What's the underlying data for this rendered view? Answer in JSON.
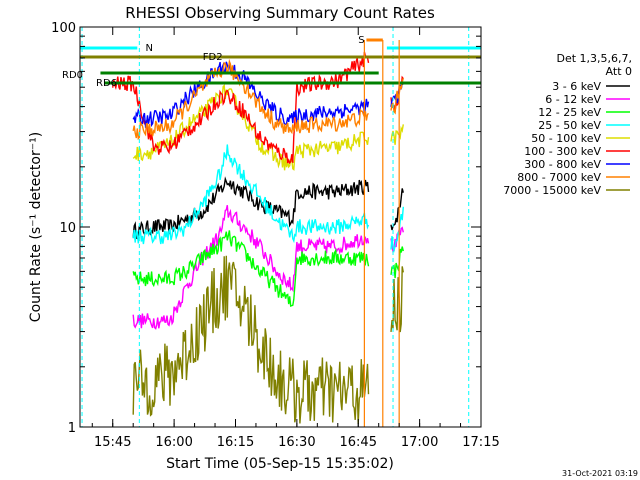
{
  "chart_data": {
    "type": "line",
    "title": "RHESSI Observing Summary Count Rates",
    "xlabel": "Start Time (05-Sep-15 15:35:02)",
    "ylabel": "Count Rate (s⁻¹ detector⁻¹)",
    "yscale": "log",
    "ylim": [
      1,
      100
    ],
    "xlim": [
      "15:37:00",
      "17:15:00"
    ],
    "x_ticks": [
      "15:45",
      "16:00",
      "16:15",
      "16:30",
      "16:45",
      "17:00",
      "17:15"
    ],
    "y_ticks": [
      "1",
      "10",
      "100"
    ],
    "legend_placement": "right",
    "legend_header": [
      "Det 1,3,5,6,7,",
      "Att 0"
    ],
    "timestamp": "31-Oct-2021 03:19",
    "annotations": {
      "N": "N",
      "S": "S",
      "FD2": "FD2",
      "RD0": "RD0",
      "RD6": "RD6"
    },
    "colors": {
      "band_3_6": "#000000",
      "band_6_12": "#ff00ff",
      "band_12_25": "#00ff00",
      "band_25_50": "#00ffff",
      "band_50_100": "#dddd00",
      "band_100_300": "#ff0000",
      "band_300_800": "#0000ff",
      "band_800_7000": "#ff8000",
      "band_7000_15000": "#808000",
      "night_marker": "#00ffff",
      "saa_marker": "#ff8000",
      "flare_marker": "#808000",
      "decimation_marker": "#008000"
    },
    "data_gaps": [
      [
        "16:47:30",
        "16:53:00"
      ]
    ],
    "series": [
      {
        "name": "3 - 6 keV",
        "color": "#000000",
        "points": [
          [
            "15:50",
            9.5
          ],
          [
            "15:55",
            10
          ],
          [
            "15:59",
            10
          ],
          [
            "16:03",
            11
          ],
          [
            "16:07",
            12
          ],
          [
            "16:11",
            15
          ],
          [
            "16:13",
            17
          ],
          [
            "16:17",
            15
          ],
          [
            "16:21",
            13
          ],
          [
            "16:25",
            12
          ],
          [
            "16:29",
            11
          ],
          [
            "16:30",
            15
          ],
          [
            "16:40",
            15
          ],
          [
            "16:47",
            16
          ],
          [
            "16:54",
            10
          ],
          [
            "16:56",
            16
          ]
        ]
      },
      {
        "name": "6 - 12 keV",
        "color": "#ff00ff",
        "points": [
          [
            "15:50",
            3.4
          ],
          [
            "15:55",
            3.4
          ],
          [
            "15:59",
            3.4
          ],
          [
            "16:03",
            5
          ],
          [
            "16:07",
            7
          ],
          [
            "16:11",
            9
          ],
          [
            "16:13",
            12
          ],
          [
            "16:17",
            10
          ],
          [
            "16:21",
            8
          ],
          [
            "16:25",
            6
          ],
          [
            "16:29",
            5
          ],
          [
            "16:30",
            8
          ],
          [
            "16:40",
            8
          ],
          [
            "16:47",
            9
          ],
          [
            "16:54",
            8
          ],
          [
            "16:56",
            10
          ]
        ]
      },
      {
        "name": "12 - 25 keV",
        "color": "#00ff00",
        "points": [
          [
            "15:50",
            5.5
          ],
          [
            "15:55",
            5.5
          ],
          [
            "15:59",
            5.5
          ],
          [
            "16:03",
            6
          ],
          [
            "16:07",
            7
          ],
          [
            "16:11",
            8
          ],
          [
            "16:13",
            9
          ],
          [
            "16:17",
            7.5
          ],
          [
            "16:21",
            6
          ],
          [
            "16:25",
            5
          ],
          [
            "16:29",
            4
          ],
          [
            "16:30",
            7
          ],
          [
            "16:40",
            7
          ],
          [
            "16:47",
            7
          ],
          [
            "16:54",
            6
          ],
          [
            "16:56",
            8
          ]
        ]
      },
      {
        "name": "25 - 50 keV",
        "color": "#00ffff",
        "points": [
          [
            "15:50",
            9
          ],
          [
            "15:55",
            9
          ],
          [
            "15:59",
            9
          ],
          [
            "16:03",
            10
          ],
          [
            "16:07",
            13
          ],
          [
            "16:11",
            18
          ],
          [
            "16:13",
            24
          ],
          [
            "16:17",
            18
          ],
          [
            "16:21",
            14
          ],
          [
            "16:25",
            11
          ],
          [
            "16:29",
            9
          ],
          [
            "16:30",
            10
          ],
          [
            "16:40",
            10
          ],
          [
            "16:47",
            11
          ],
          [
            "16:54",
            8
          ],
          [
            "16:56",
            12
          ]
        ]
      },
      {
        "name": "50 - 100 keV",
        "color": "#dddd00",
        "points": [
          [
            "15:50",
            23
          ],
          [
            "15:55",
            24
          ],
          [
            "15:59",
            26
          ],
          [
            "16:03",
            32
          ],
          [
            "16:07",
            37
          ],
          [
            "16:11",
            45
          ],
          [
            "16:13",
            48
          ],
          [
            "16:17",
            36
          ],
          [
            "16:21",
            26
          ],
          [
            "16:25",
            22
          ],
          [
            "16:29",
            20
          ],
          [
            "16:30",
            24
          ],
          [
            "16:40",
            25
          ],
          [
            "16:47",
            28
          ],
          [
            "16:54",
            28
          ],
          [
            "16:56",
            30
          ]
        ]
      },
      {
        "name": "100 - 300 keV",
        "color": "#ff0000",
        "points": [
          [
            "15:45",
            52
          ],
          [
            "15:50",
            52
          ],
          [
            "15:55",
            25
          ],
          [
            "15:59",
            25
          ],
          [
            "16:03",
            30
          ],
          [
            "16:07",
            35
          ],
          [
            "16:11",
            44
          ],
          [
            "16:13",
            46
          ],
          [
            "16:17",
            38
          ],
          [
            "16:21",
            28
          ],
          [
            "16:25",
            24
          ],
          [
            "16:29",
            22
          ],
          [
            "16:30",
            50
          ],
          [
            "16:40",
            54
          ],
          [
            "16:47",
            70
          ],
          [
            "16:54",
            40
          ],
          [
            "16:56",
            55
          ]
        ]
      },
      {
        "name": "300 - 800 keV",
        "color": "#0000ff",
        "points": [
          [
            "15:50",
            35
          ],
          [
            "15:55",
            35
          ],
          [
            "15:59",
            36
          ],
          [
            "16:03",
            44
          ],
          [
            "16:07",
            52
          ],
          [
            "16:11",
            62
          ],
          [
            "16:13",
            64
          ],
          [
            "16:17",
            56
          ],
          [
            "16:21",
            44
          ],
          [
            "16:25",
            37
          ],
          [
            "16:29",
            34
          ],
          [
            "16:30",
            36
          ],
          [
            "16:40",
            38
          ],
          [
            "16:47",
            40
          ],
          [
            "16:54",
            42
          ],
          [
            "16:56",
            52
          ]
        ]
      },
      {
        "name": "800 - 7000 keV",
        "color": "#ff8000",
        "points": [
          [
            "15:50",
            30
          ],
          [
            "15:55",
            31
          ],
          [
            "15:59",
            32
          ],
          [
            "16:03",
            40
          ],
          [
            "16:07",
            50
          ],
          [
            "16:11",
            60
          ],
          [
            "16:13",
            63
          ],
          [
            "16:17",
            52
          ],
          [
            "16:21",
            40
          ],
          [
            "16:25",
            33
          ],
          [
            "16:29",
            30
          ],
          [
            "16:30",
            32
          ],
          [
            "16:40",
            33
          ],
          [
            "16:47",
            36
          ],
          [
            "16:54",
            40
          ],
          [
            "16:56",
            58
          ]
        ]
      },
      {
        "name": "7000 - 15000 keV",
        "color": "#808000",
        "points": [
          [
            "15:50",
            1.6
          ],
          [
            "15:55",
            1.7
          ],
          [
            "15:59",
            1.8
          ],
          [
            "16:03",
            2.4
          ],
          [
            "16:07",
            3.4
          ],
          [
            "16:11",
            4.6
          ],
          [
            "16:13",
            5.2
          ],
          [
            "16:17",
            4
          ],
          [
            "16:21",
            2.6
          ],
          [
            "16:25",
            1.8
          ],
          [
            "16:29",
            1.5
          ],
          [
            "16:30",
            1.5
          ],
          [
            "16:40",
            1.5
          ],
          [
            "16:47",
            1.5
          ],
          [
            "16:54",
            4
          ],
          [
            "16:56",
            4.5
          ]
        ]
      }
    ]
  }
}
